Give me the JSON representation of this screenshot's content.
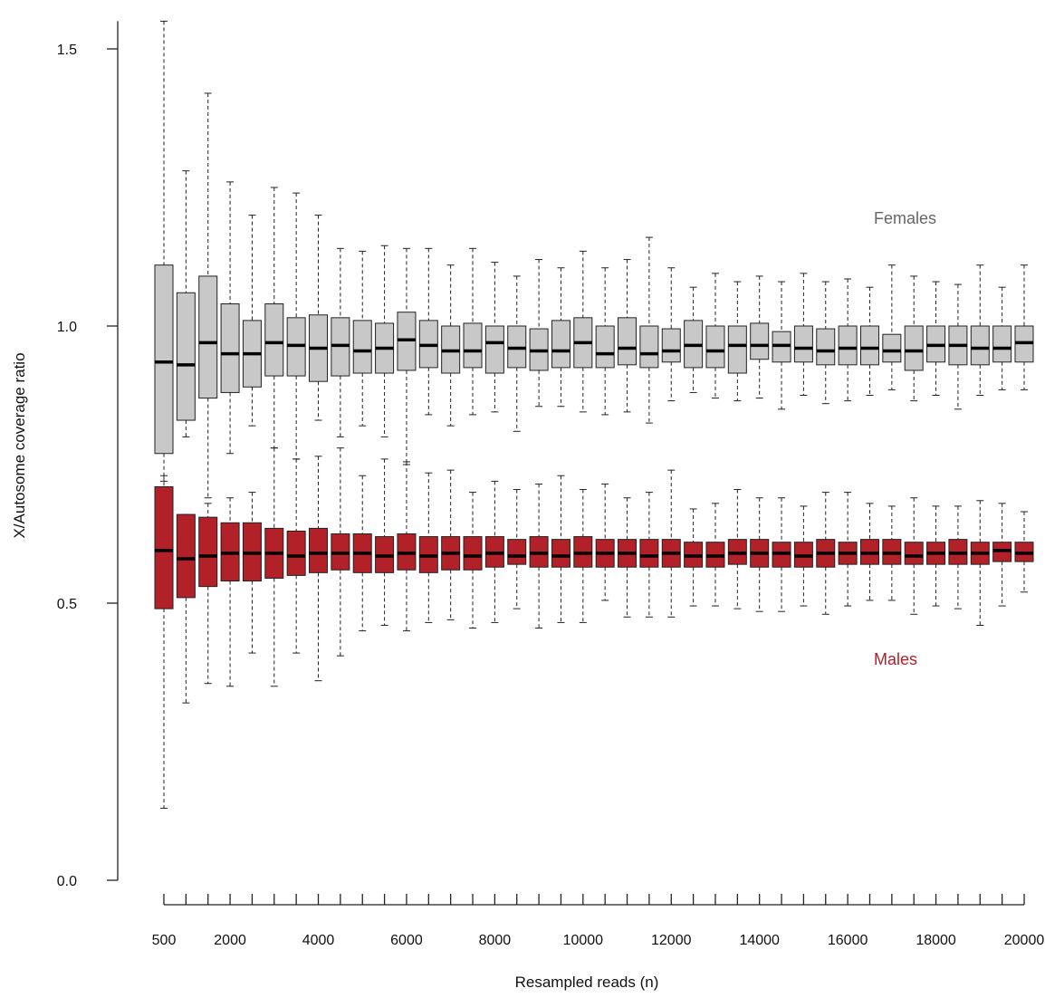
{
  "chart_data": {
    "type": "boxplot",
    "xlabel": "Resampled reads (n)",
    "ylabel": "X/Autosome coverage ratio",
    "ylim": [
      0,
      1.55
    ],
    "y_ticks": [
      "0.0",
      "0.5",
      "1.0",
      "1.5"
    ],
    "y_tick_values": [
      0,
      0.5,
      1.0,
      1.5
    ],
    "x_tick_labels": [
      "500",
      "2000",
      "4000",
      "6000",
      "8000",
      "10000",
      "12000",
      "14000",
      "16000",
      "18000",
      "20000"
    ],
    "x_tick_values": [
      500,
      2000,
      4000,
      6000,
      8000,
      10000,
      12000,
      14000,
      16000,
      18000,
      20000
    ],
    "grid": false,
    "series": [
      {
        "name": "Females",
        "color": "#c8c8c8",
        "label_color": "#666666",
        "boxes": [
          {
            "x": 500,
            "lo": 0.72,
            "q1": 0.77,
            "med": 0.935,
            "q3": 1.11,
            "hi": 1.55
          },
          {
            "x": 1000,
            "lo": 0.8,
            "q1": 0.83,
            "med": 0.93,
            "q3": 1.06,
            "hi": 1.28
          },
          {
            "x": 1500,
            "lo": 0.69,
            "q1": 0.87,
            "med": 0.97,
            "q3": 1.09,
            "hi": 1.42
          },
          {
            "x": 2000,
            "lo": 0.77,
            "q1": 0.88,
            "med": 0.95,
            "q3": 1.04,
            "hi": 1.26
          },
          {
            "x": 2500,
            "lo": 0.82,
            "q1": 0.89,
            "med": 0.95,
            "q3": 1.01,
            "hi": 1.2
          },
          {
            "x": 3000,
            "lo": 0.78,
            "q1": 0.91,
            "med": 0.97,
            "q3": 1.04,
            "hi": 1.25
          },
          {
            "x": 3500,
            "lo": 0.76,
            "q1": 0.91,
            "med": 0.965,
            "q3": 1.015,
            "hi": 1.24
          },
          {
            "x": 4000,
            "lo": 0.83,
            "q1": 0.9,
            "med": 0.96,
            "q3": 1.02,
            "hi": 1.2
          },
          {
            "x": 4500,
            "lo": 0.8,
            "q1": 0.91,
            "med": 0.965,
            "q3": 1.015,
            "hi": 1.14
          },
          {
            "x": 5000,
            "lo": 0.82,
            "q1": 0.915,
            "med": 0.955,
            "q3": 1.01,
            "hi": 1.135
          },
          {
            "x": 5500,
            "lo": 0.8,
            "q1": 0.915,
            "med": 0.96,
            "q3": 1.005,
            "hi": 1.145
          },
          {
            "x": 6000,
            "lo": 0.75,
            "q1": 0.92,
            "med": 0.975,
            "q3": 1.025,
            "hi": 1.14
          },
          {
            "x": 6500,
            "lo": 0.84,
            "q1": 0.925,
            "med": 0.965,
            "q3": 1.01,
            "hi": 1.14
          },
          {
            "x": 7000,
            "lo": 0.82,
            "q1": 0.915,
            "med": 0.955,
            "q3": 1.0,
            "hi": 1.11
          },
          {
            "x": 7500,
            "lo": 0.84,
            "q1": 0.925,
            "med": 0.955,
            "q3": 1.005,
            "hi": 1.14
          },
          {
            "x": 8000,
            "lo": 0.845,
            "q1": 0.915,
            "med": 0.97,
            "q3": 1.0,
            "hi": 1.115
          },
          {
            "x": 8500,
            "lo": 0.81,
            "q1": 0.925,
            "med": 0.96,
            "q3": 1.0,
            "hi": 1.09
          },
          {
            "x": 9000,
            "lo": 0.855,
            "q1": 0.92,
            "med": 0.955,
            "q3": 0.995,
            "hi": 1.12
          },
          {
            "x": 9500,
            "lo": 0.855,
            "q1": 0.925,
            "med": 0.955,
            "q3": 1.01,
            "hi": 1.105
          },
          {
            "x": 10000,
            "lo": 0.845,
            "q1": 0.925,
            "med": 0.97,
            "q3": 1.015,
            "hi": 1.135
          },
          {
            "x": 10500,
            "lo": 0.84,
            "q1": 0.925,
            "med": 0.95,
            "q3": 1.0,
            "hi": 1.105
          },
          {
            "x": 11000,
            "lo": 0.845,
            "q1": 0.93,
            "med": 0.96,
            "q3": 1.015,
            "hi": 1.12
          },
          {
            "x": 11500,
            "lo": 0.825,
            "q1": 0.925,
            "med": 0.95,
            "q3": 1.0,
            "hi": 1.16
          },
          {
            "x": 12000,
            "lo": 0.865,
            "q1": 0.935,
            "med": 0.955,
            "q3": 0.995,
            "hi": 1.105
          },
          {
            "x": 12500,
            "lo": 0.88,
            "q1": 0.925,
            "med": 0.965,
            "q3": 1.01,
            "hi": 1.07
          },
          {
            "x": 13000,
            "lo": 0.87,
            "q1": 0.925,
            "med": 0.955,
            "q3": 1.0,
            "hi": 1.095
          },
          {
            "x": 13500,
            "lo": 0.865,
            "q1": 0.915,
            "med": 0.965,
            "q3": 1.0,
            "hi": 1.08
          },
          {
            "x": 14000,
            "lo": 0.87,
            "q1": 0.94,
            "med": 0.965,
            "q3": 1.005,
            "hi": 1.09
          },
          {
            "x": 14500,
            "lo": 0.85,
            "q1": 0.935,
            "med": 0.965,
            "q3": 0.99,
            "hi": 1.08
          },
          {
            "x": 15000,
            "lo": 0.875,
            "q1": 0.935,
            "med": 0.96,
            "q3": 1.0,
            "hi": 1.095
          },
          {
            "x": 15500,
            "lo": 0.86,
            "q1": 0.93,
            "med": 0.955,
            "q3": 0.995,
            "hi": 1.08
          },
          {
            "x": 16000,
            "lo": 0.865,
            "q1": 0.93,
            "med": 0.96,
            "q3": 1.0,
            "hi": 1.085
          },
          {
            "x": 16500,
            "lo": 0.875,
            "q1": 0.93,
            "med": 0.96,
            "q3": 1.0,
            "hi": 1.07
          },
          {
            "x": 17000,
            "lo": 0.885,
            "q1": 0.935,
            "med": 0.955,
            "q3": 0.985,
            "hi": 1.11
          },
          {
            "x": 17500,
            "lo": 0.865,
            "q1": 0.92,
            "med": 0.955,
            "q3": 1.0,
            "hi": 1.09
          },
          {
            "x": 18000,
            "lo": 0.875,
            "q1": 0.935,
            "med": 0.965,
            "q3": 1.0,
            "hi": 1.08
          },
          {
            "x": 18500,
            "lo": 0.85,
            "q1": 0.93,
            "med": 0.965,
            "q3": 1.0,
            "hi": 1.075
          },
          {
            "x": 19000,
            "lo": 0.875,
            "q1": 0.93,
            "med": 0.96,
            "q3": 1.0,
            "hi": 1.11
          },
          {
            "x": 19500,
            "lo": 0.885,
            "q1": 0.935,
            "med": 0.96,
            "q3": 1.0,
            "hi": 1.07
          },
          {
            "x": 20000,
            "lo": 0.885,
            "q1": 0.935,
            "med": 0.97,
            "q3": 1.0,
            "hi": 1.11
          }
        ]
      },
      {
        "name": "Males",
        "color": "#b22028",
        "label_color": "#b22028",
        "boxes": [
          {
            "x": 500,
            "lo": 0.13,
            "q1": 0.49,
            "med": 0.595,
            "q3": 0.71,
            "hi": 0.73
          },
          {
            "x": 1000,
            "lo": 0.32,
            "q1": 0.51,
            "med": 0.58,
            "q3": 0.66,
            "hi": 0.66
          },
          {
            "x": 1500,
            "lo": 0.355,
            "q1": 0.53,
            "med": 0.585,
            "q3": 0.655,
            "hi": 0.68
          },
          {
            "x": 2000,
            "lo": 0.35,
            "q1": 0.54,
            "med": 0.59,
            "q3": 0.645,
            "hi": 0.69
          },
          {
            "x": 2500,
            "lo": 0.41,
            "q1": 0.54,
            "med": 0.59,
            "q3": 0.645,
            "hi": 0.7
          },
          {
            "x": 3000,
            "lo": 0.35,
            "q1": 0.545,
            "med": 0.59,
            "q3": 0.635,
            "hi": 0.78
          },
          {
            "x": 3500,
            "lo": 0.41,
            "q1": 0.55,
            "med": 0.585,
            "q3": 0.63,
            "hi": 0.76
          },
          {
            "x": 4000,
            "lo": 0.36,
            "q1": 0.555,
            "med": 0.59,
            "q3": 0.635,
            "hi": 0.765
          },
          {
            "x": 4500,
            "lo": 0.405,
            "q1": 0.56,
            "med": 0.59,
            "q3": 0.625,
            "hi": 0.78
          },
          {
            "x": 5000,
            "lo": 0.45,
            "q1": 0.555,
            "med": 0.59,
            "q3": 0.625,
            "hi": 0.73
          },
          {
            "x": 5500,
            "lo": 0.46,
            "q1": 0.555,
            "med": 0.585,
            "q3": 0.62,
            "hi": 0.76
          },
          {
            "x": 6000,
            "lo": 0.45,
            "q1": 0.56,
            "med": 0.59,
            "q3": 0.625,
            "hi": 0.755
          },
          {
            "x": 6500,
            "lo": 0.465,
            "q1": 0.555,
            "med": 0.585,
            "q3": 0.62,
            "hi": 0.735
          },
          {
            "x": 7000,
            "lo": 0.47,
            "q1": 0.56,
            "med": 0.59,
            "q3": 0.62,
            "hi": 0.74
          },
          {
            "x": 7500,
            "lo": 0.455,
            "q1": 0.56,
            "med": 0.585,
            "q3": 0.62,
            "hi": 0.7
          },
          {
            "x": 8000,
            "lo": 0.465,
            "q1": 0.565,
            "med": 0.59,
            "q3": 0.62,
            "hi": 0.72
          },
          {
            "x": 8500,
            "lo": 0.49,
            "q1": 0.57,
            "med": 0.585,
            "q3": 0.615,
            "hi": 0.705
          },
          {
            "x": 9000,
            "lo": 0.455,
            "q1": 0.565,
            "med": 0.59,
            "q3": 0.62,
            "hi": 0.715
          },
          {
            "x": 9500,
            "lo": 0.465,
            "q1": 0.565,
            "med": 0.585,
            "q3": 0.615,
            "hi": 0.73
          },
          {
            "x": 10000,
            "lo": 0.465,
            "q1": 0.565,
            "med": 0.59,
            "q3": 0.62,
            "hi": 0.705
          },
          {
            "x": 10500,
            "lo": 0.505,
            "q1": 0.565,
            "med": 0.59,
            "q3": 0.615,
            "hi": 0.715
          },
          {
            "x": 11000,
            "lo": 0.475,
            "q1": 0.565,
            "med": 0.59,
            "q3": 0.615,
            "hi": 0.69
          },
          {
            "x": 11500,
            "lo": 0.475,
            "q1": 0.565,
            "med": 0.585,
            "q3": 0.615,
            "hi": 0.7
          },
          {
            "x": 12000,
            "lo": 0.475,
            "q1": 0.565,
            "med": 0.59,
            "q3": 0.615,
            "hi": 0.74
          },
          {
            "x": 12500,
            "lo": 0.495,
            "q1": 0.565,
            "med": 0.585,
            "q3": 0.61,
            "hi": 0.67
          },
          {
            "x": 13000,
            "lo": 0.495,
            "q1": 0.565,
            "med": 0.585,
            "q3": 0.61,
            "hi": 0.68
          },
          {
            "x": 13500,
            "lo": 0.49,
            "q1": 0.57,
            "med": 0.59,
            "q3": 0.615,
            "hi": 0.705
          },
          {
            "x": 14000,
            "lo": 0.485,
            "q1": 0.565,
            "med": 0.59,
            "q3": 0.615,
            "hi": 0.69
          },
          {
            "x": 14500,
            "lo": 0.485,
            "q1": 0.565,
            "med": 0.59,
            "q3": 0.61,
            "hi": 0.69
          },
          {
            "x": 15000,
            "lo": 0.495,
            "q1": 0.565,
            "med": 0.585,
            "q3": 0.61,
            "hi": 0.675
          },
          {
            "x": 15500,
            "lo": 0.48,
            "q1": 0.565,
            "med": 0.59,
            "q3": 0.615,
            "hi": 0.7
          },
          {
            "x": 16000,
            "lo": 0.495,
            "q1": 0.57,
            "med": 0.59,
            "q3": 0.61,
            "hi": 0.7
          },
          {
            "x": 16500,
            "lo": 0.505,
            "q1": 0.57,
            "med": 0.59,
            "q3": 0.615,
            "hi": 0.68
          },
          {
            "x": 17000,
            "lo": 0.505,
            "q1": 0.57,
            "med": 0.59,
            "q3": 0.615,
            "hi": 0.675
          },
          {
            "x": 17500,
            "lo": 0.48,
            "q1": 0.57,
            "med": 0.585,
            "q3": 0.61,
            "hi": 0.69
          },
          {
            "x": 18000,
            "lo": 0.495,
            "q1": 0.57,
            "med": 0.59,
            "q3": 0.61,
            "hi": 0.675
          },
          {
            "x": 18500,
            "lo": 0.49,
            "q1": 0.57,
            "med": 0.59,
            "q3": 0.615,
            "hi": 0.675
          },
          {
            "x": 19000,
            "lo": 0.46,
            "q1": 0.57,
            "med": 0.59,
            "q3": 0.61,
            "hi": 0.685
          },
          {
            "x": 19500,
            "lo": 0.495,
            "q1": 0.575,
            "med": 0.595,
            "q3": 0.61,
            "hi": 0.68
          },
          {
            "x": 20000,
            "lo": 0.52,
            "q1": 0.575,
            "med": 0.59,
            "q3": 0.61,
            "hi": 0.665
          }
        ]
      }
    ]
  }
}
